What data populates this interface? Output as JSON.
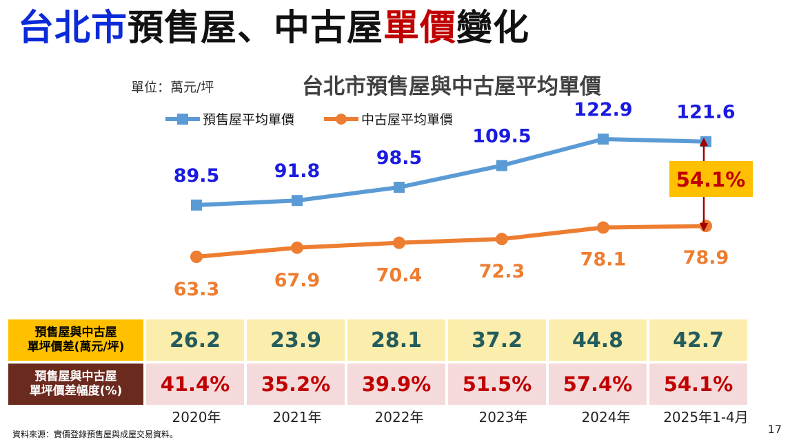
{
  "slide": {
    "title_part1": "台北市",
    "title_part2": "預售屋、中古屋",
    "title_part3": "單價",
    "title_part4": "變化",
    "unit_label": "單位：萬元/坪",
    "footer_source": "資料來源：實價登錄預售屋與成屋交易資料。",
    "page_number": "17"
  },
  "colors": {
    "title_blue": "#0B2BD8",
    "title_dark": "#111111",
    "title_red": "#C00000",
    "presale_line": "#5B9BD5",
    "presale_label": "#1A1AE0",
    "resale_line": "#ED7D31",
    "resale_label": "#ED7D31",
    "callout_bg": "#FFC000",
    "callout_text": "#C00000",
    "arrow": "#A00000"
  },
  "chart_data": {
    "type": "line",
    "title": "台北市預售屋與中古屋平均單價",
    "unit": "萬元/坪",
    "categories": [
      "2020年",
      "2021年",
      "2022年",
      "2023年",
      "2024年",
      "2025年1-4月"
    ],
    "series": [
      {
        "name": "預售屋平均單價",
        "values": [
          89.5,
          91.8,
          98.5,
          109.5,
          122.9,
          121.6
        ]
      },
      {
        "name": "中古屋平均單價",
        "values": [
          63.3,
          67.9,
          70.4,
          72.3,
          78.1,
          78.9
        ]
      }
    ],
    "annotation": {
      "text": "54.1%",
      "category": "2025年1-4月"
    },
    "grid": false,
    "legend_position": "top-left"
  },
  "table": {
    "row1_label": "預售屋與中古屋\n單坪價差(萬元/坪)",
    "row1_values": [
      "26.2",
      "23.9",
      "28.1",
      "37.2",
      "44.8",
      "42.7"
    ],
    "row2_label": "預售屋與中古屋\n單坪價差幅度(%)",
    "row2_values": [
      "41.4%",
      "35.2%",
      "39.9%",
      "51.5%",
      "57.4%",
      "54.1%"
    ]
  }
}
